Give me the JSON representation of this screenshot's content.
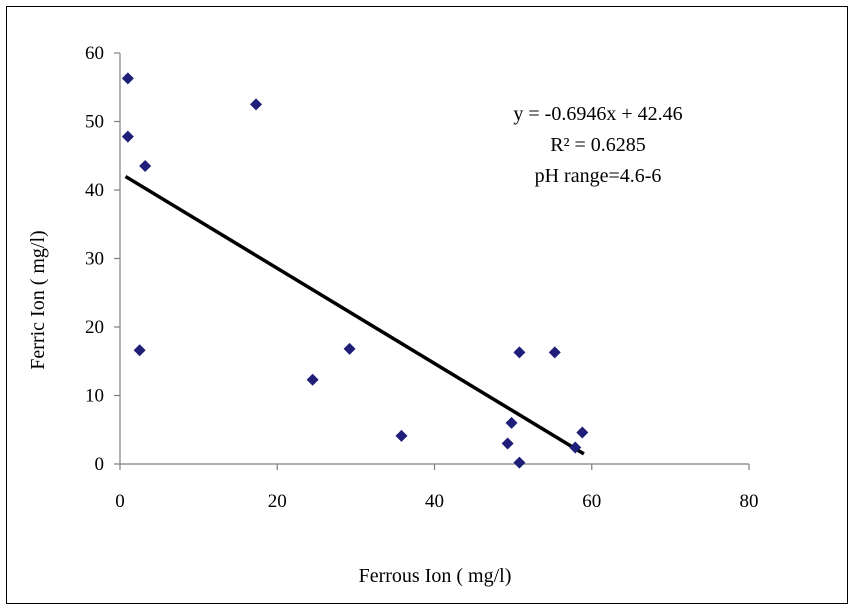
{
  "chart_data": {
    "type": "scatter",
    "xlabel": "Ferrous Ion ( mg/l)",
    "ylabel": "Ferric Ion ( mg/l)",
    "xlim": [
      0,
      80
    ],
    "ylim": [
      0,
      60
    ],
    "xticks": [
      0,
      20,
      40,
      60,
      80
    ],
    "yticks": [
      0,
      10,
      20,
      30,
      40,
      50,
      60
    ],
    "grid": false,
    "legend": "none",
    "marker": "diamond",
    "marker_color": "#1f1f7a",
    "series": [
      {
        "points": [
          [
            1.0,
            56.3
          ],
          [
            1.0,
            47.8
          ],
          [
            3.2,
            43.5
          ],
          [
            17.3,
            52.5
          ],
          [
            2.5,
            16.6
          ],
          [
            24.5,
            12.3
          ],
          [
            29.2,
            16.8
          ],
          [
            35.8,
            4.1
          ],
          [
            49.3,
            3.0
          ],
          [
            49.8,
            6.0
          ],
          [
            50.8,
            16.3
          ],
          [
            50.8,
            0.2
          ],
          [
            55.3,
            16.3
          ],
          [
            57.9,
            2.4
          ],
          [
            58.8,
            4.6
          ]
        ]
      }
    ],
    "trendline": {
      "slope": -0.6946,
      "intercept": 42.46,
      "x_range": [
        0.7,
        59.0
      ],
      "color": "#000000"
    },
    "annotations": [
      {
        "text": "y = -0.6946x + 42.46"
      },
      {
        "text": "R² = 0.6285"
      },
      {
        "text": "pH range=4.6-6"
      }
    ]
  }
}
